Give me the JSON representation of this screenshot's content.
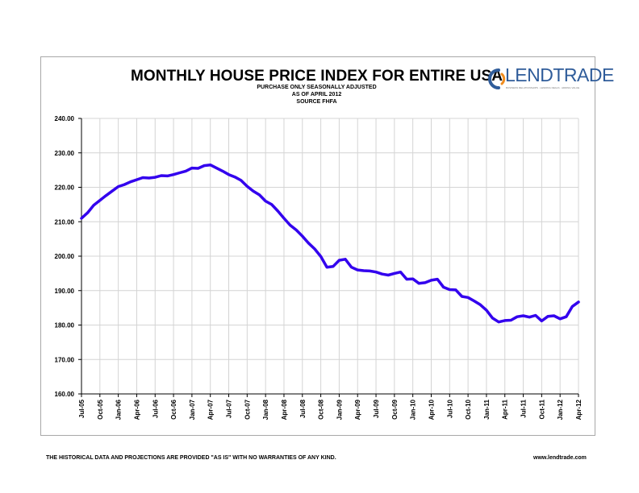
{
  "header": {
    "title": "MONTHLY HOUSE PRICE INDEX FOR ENTIRE USA",
    "subtitle_lines": [
      "PURCHASE ONLY SEASONALLY ADJUSTED",
      "AS OF APRIL 2012",
      "SOURCE FHFA"
    ]
  },
  "logo": {
    "text": "LENDTRADE",
    "tagline": "BUSINESS RELATIONSHIPS · LENDING DEALS · ADDING VALUE",
    "colors": {
      "text": "#2f5c9a",
      "swoosh_orange": "#f08c1e",
      "swoosh_blue": "#2f5c9a"
    }
  },
  "footer": {
    "disclaimer": "THE HISTORICAL DATA AND PROJECTIONS ARE PROVIDED \"AS IS\" WITH NO WARRANTIES OF ANY KIND.",
    "website": "www.lendtrade.com"
  },
  "chart_data": {
    "type": "line",
    "line_color": "#3300ee",
    "grid": true,
    "ylim": [
      160,
      240
    ],
    "y_ticks": [
      "160.00",
      "170.00",
      "180.00",
      "190.00",
      "200.00",
      "210.00",
      "220.00",
      "230.00",
      "240.00"
    ],
    "x_tick_labels": [
      "Jul-05",
      "Oct-05",
      "Jan-06",
      "Apr-06",
      "Jul-06",
      "Oct-06",
      "Jan-07",
      "Apr-07",
      "Jul-07",
      "Oct-07",
      "Jan-08",
      "Apr-08",
      "Jul-08",
      "Oct-08",
      "Jan-09",
      "Apr-09",
      "Jul-09",
      "Oct-09",
      "Jan-10",
      "Apr-10",
      "Jul-10",
      "Oct-10",
      "Jan-11",
      "Apr-11",
      "Jul-11",
      "Oct-11",
      "Jan-12",
      "Apr-12"
    ],
    "start_month": "Jul-05",
    "values": [
      211.0,
      212.6,
      214.8,
      216.2,
      217.6,
      218.9,
      220.2,
      220.8,
      221.6,
      222.2,
      222.8,
      222.7,
      222.9,
      223.4,
      223.3,
      223.7,
      224.2,
      224.7,
      225.6,
      225.5,
      226.3,
      226.5,
      225.6,
      224.7,
      223.7,
      223.0,
      222.0,
      220.3,
      218.9,
      217.8,
      216.0,
      215.0,
      213.1,
      211.0,
      209.0,
      207.6,
      205.8,
      203.8,
      202.1,
      199.9,
      196.8,
      197.0,
      198.8,
      199.1,
      196.8,
      196.0,
      195.8,
      195.7,
      195.4,
      194.8,
      194.5,
      195.0,
      195.4,
      193.3,
      193.4,
      192.1,
      192.3,
      193.0,
      193.3,
      191.0,
      190.3,
      190.2,
      188.3,
      188.0,
      187.0,
      185.9,
      184.3,
      182.0,
      180.9,
      181.3,
      181.4,
      182.4,
      182.7,
      182.3,
      182.8,
      181.2,
      182.5,
      182.7,
      181.8,
      182.4,
      185.4,
      186.7
    ]
  }
}
